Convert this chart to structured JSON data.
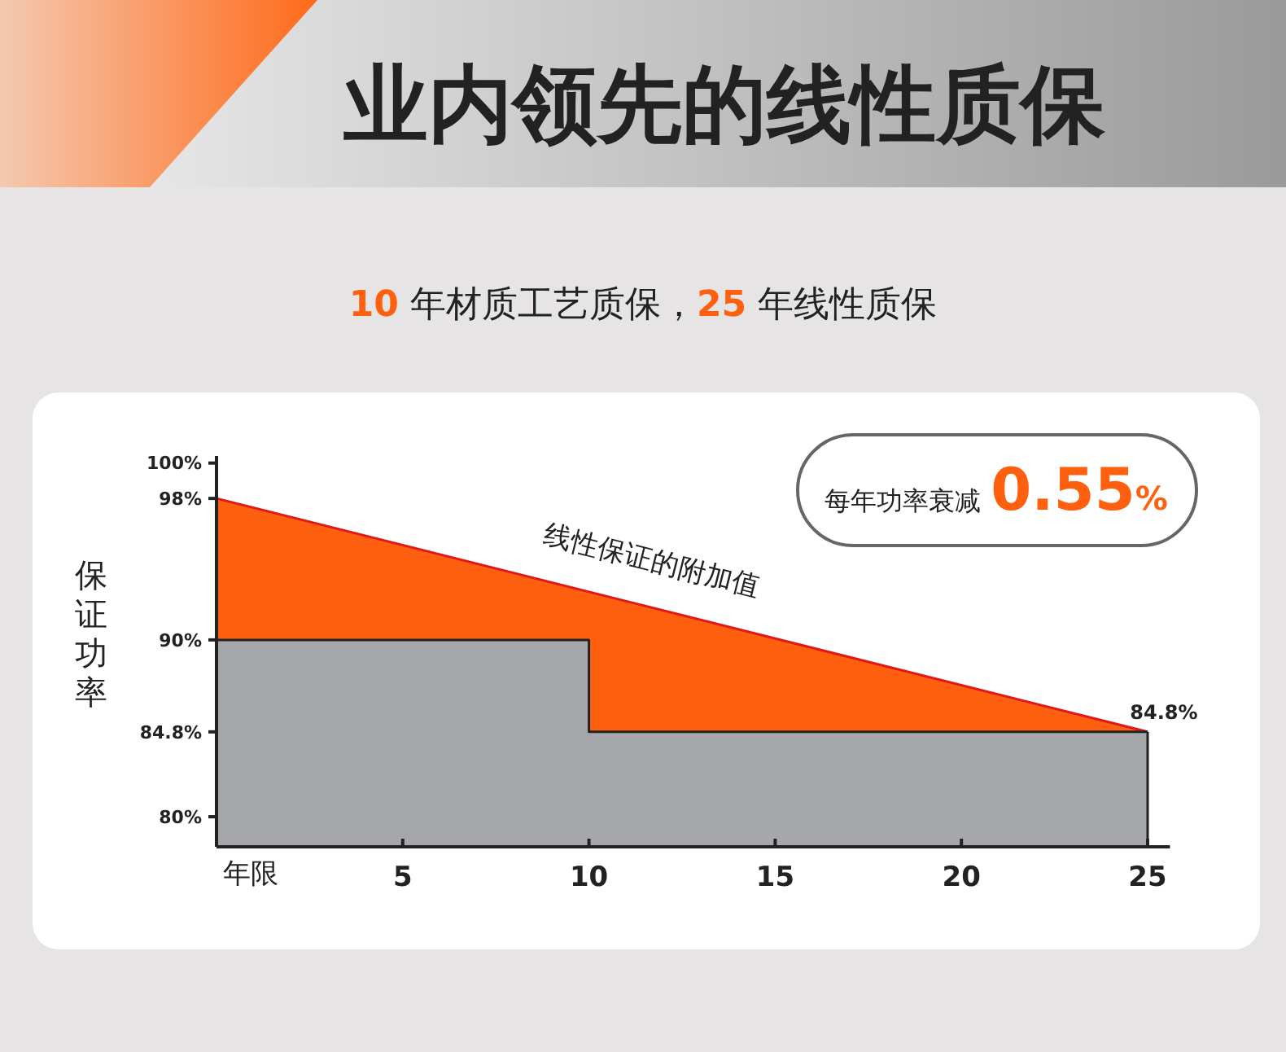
{
  "chart_data": {
    "type": "area",
    "title": "业内领先的线性质保",
    "subtitle": "10 年材质工艺质保，25 年线性质保",
    "xlabel": "年限",
    "ylabel": "保证功率",
    "xlim": [
      0,
      25.6
    ],
    "xticks": [
      5,
      10,
      15,
      20,
      25
    ],
    "ylim": [
      78.3,
      100.4
    ],
    "yticks": [
      {
        "value": 80,
        "label": "80%"
      },
      {
        "value": 84.8,
        "label": "84.8%"
      },
      {
        "value": 90,
        "label": "90%"
      },
      {
        "value": 98,
        "label": "98%"
      },
      {
        "value": 100,
        "label": "100%"
      }
    ],
    "series": [
      {
        "color": "#ff6010",
        "x": [
          0,
          25
        ],
        "values": [
          98,
          84.8
        ]
      },
      {
        "color": "#a6a7ab",
        "x": [
          0,
          10,
          10,
          25
        ],
        "values": [
          90,
          90,
          84.8,
          84.8
        ]
      }
    ],
    "annotations": [
      "线性保证的附加值",
      {
        "text": "84.8%",
        "x": 25,
        "y": 84.8
      },
      "每年功率衰减0.55%"
    ]
  }
}
